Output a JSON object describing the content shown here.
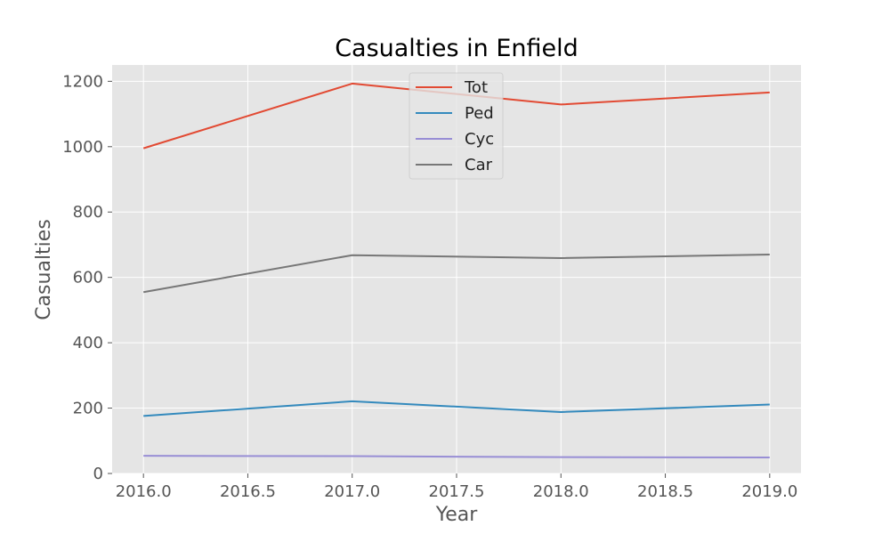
{
  "chart_data": {
    "type": "line",
    "title": "Casualties in Enfield",
    "xlabel": "Year",
    "ylabel": "Casualties",
    "x": [
      2016,
      2017,
      2018,
      2019
    ],
    "xlim": [
      2015.85,
      2019.15
    ],
    "ylim": [
      0,
      1250
    ],
    "xticks": [
      "2016.0",
      "2016.5",
      "2017.0",
      "2017.5",
      "2018.0",
      "2018.5",
      "2019.0"
    ],
    "xtick_values": [
      2016.0,
      2016.5,
      2017.0,
      2017.5,
      2018.0,
      2018.5,
      2019.0
    ],
    "yticks": [
      "0",
      "200",
      "400",
      "600",
      "800",
      "1000",
      "1200"
    ],
    "ytick_values": [
      0,
      200,
      400,
      600,
      800,
      1000,
      1200
    ],
    "grid": true,
    "legend_position": "top-center",
    "series": [
      {
        "name": "Tot",
        "color": "#E24A33",
        "values": [
          995,
          1193,
          1129,
          1166
        ]
      },
      {
        "name": "Ped",
        "color": "#348ABD",
        "values": [
          176,
          221,
          188,
          211
        ]
      },
      {
        "name": "Cyc",
        "color": "#988ED5",
        "values": [
          54,
          53,
          50,
          49
        ]
      },
      {
        "name": "Car",
        "color": "#777777",
        "values": [
          555,
          668,
          659,
          670
        ]
      }
    ]
  }
}
